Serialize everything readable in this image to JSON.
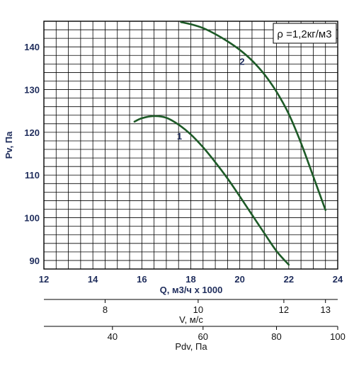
{
  "chart_data": {
    "type": "line",
    "xlabel": "Q, м3/ч х 1000",
    "ylabel": "Pv, Па",
    "xlim": [
      12,
      24
    ],
    "ylim": [
      88,
      146
    ],
    "grid": true,
    "x_ticks": [
      "12",
      "14",
      "16",
      "18",
      "20",
      "22",
      "24"
    ],
    "y_ticks": [
      "90",
      "100",
      "110",
      "120",
      "130",
      "140"
    ],
    "annotation": "ρ =1,2кг/м3",
    "series": [
      {
        "name": "1",
        "x": [
          15.7,
          16.0,
          16.5,
          17.0,
          17.5,
          18.0,
          18.5,
          19.0,
          19.5,
          20.0,
          20.5,
          21.0,
          21.5,
          22.0
        ],
        "y": [
          122.5,
          123.3,
          123.8,
          123.4,
          121.8,
          119.5,
          116.5,
          113.0,
          109.2,
          105.0,
          100.7,
          96.4,
          92.2,
          89.0
        ]
      },
      {
        "name": "2",
        "x": [
          17.6,
          18.0,
          18.5,
          19.0,
          19.5,
          20.0,
          20.5,
          21.0,
          21.5,
          22.0,
          22.5,
          23.0,
          23.5
        ],
        "y": [
          145.8,
          145.3,
          144.4,
          143.0,
          141.3,
          139.3,
          136.8,
          133.6,
          129.5,
          124.3,
          117.5,
          109.7,
          101.8
        ]
      }
    ],
    "secondary_axes": [
      {
        "label": "V, м/с",
        "ticks": [
          {
            "label": "8",
            "at_q": 14.5
          },
          {
            "label": "10",
            "at_q": 18.3
          },
          {
            "label": "12",
            "at_q": 21.8
          },
          {
            "label": "13",
            "at_q": 23.5
          }
        ]
      },
      {
        "label": "Pdv, Па",
        "ticks": [
          {
            "label": "40",
            "at_q": 14.8
          },
          {
            "label": "60",
            "at_q": 18.5
          },
          {
            "label": "80",
            "at_q": 21.5
          },
          {
            "label": "100",
            "at_q": 24.0
          }
        ]
      }
    ]
  }
}
